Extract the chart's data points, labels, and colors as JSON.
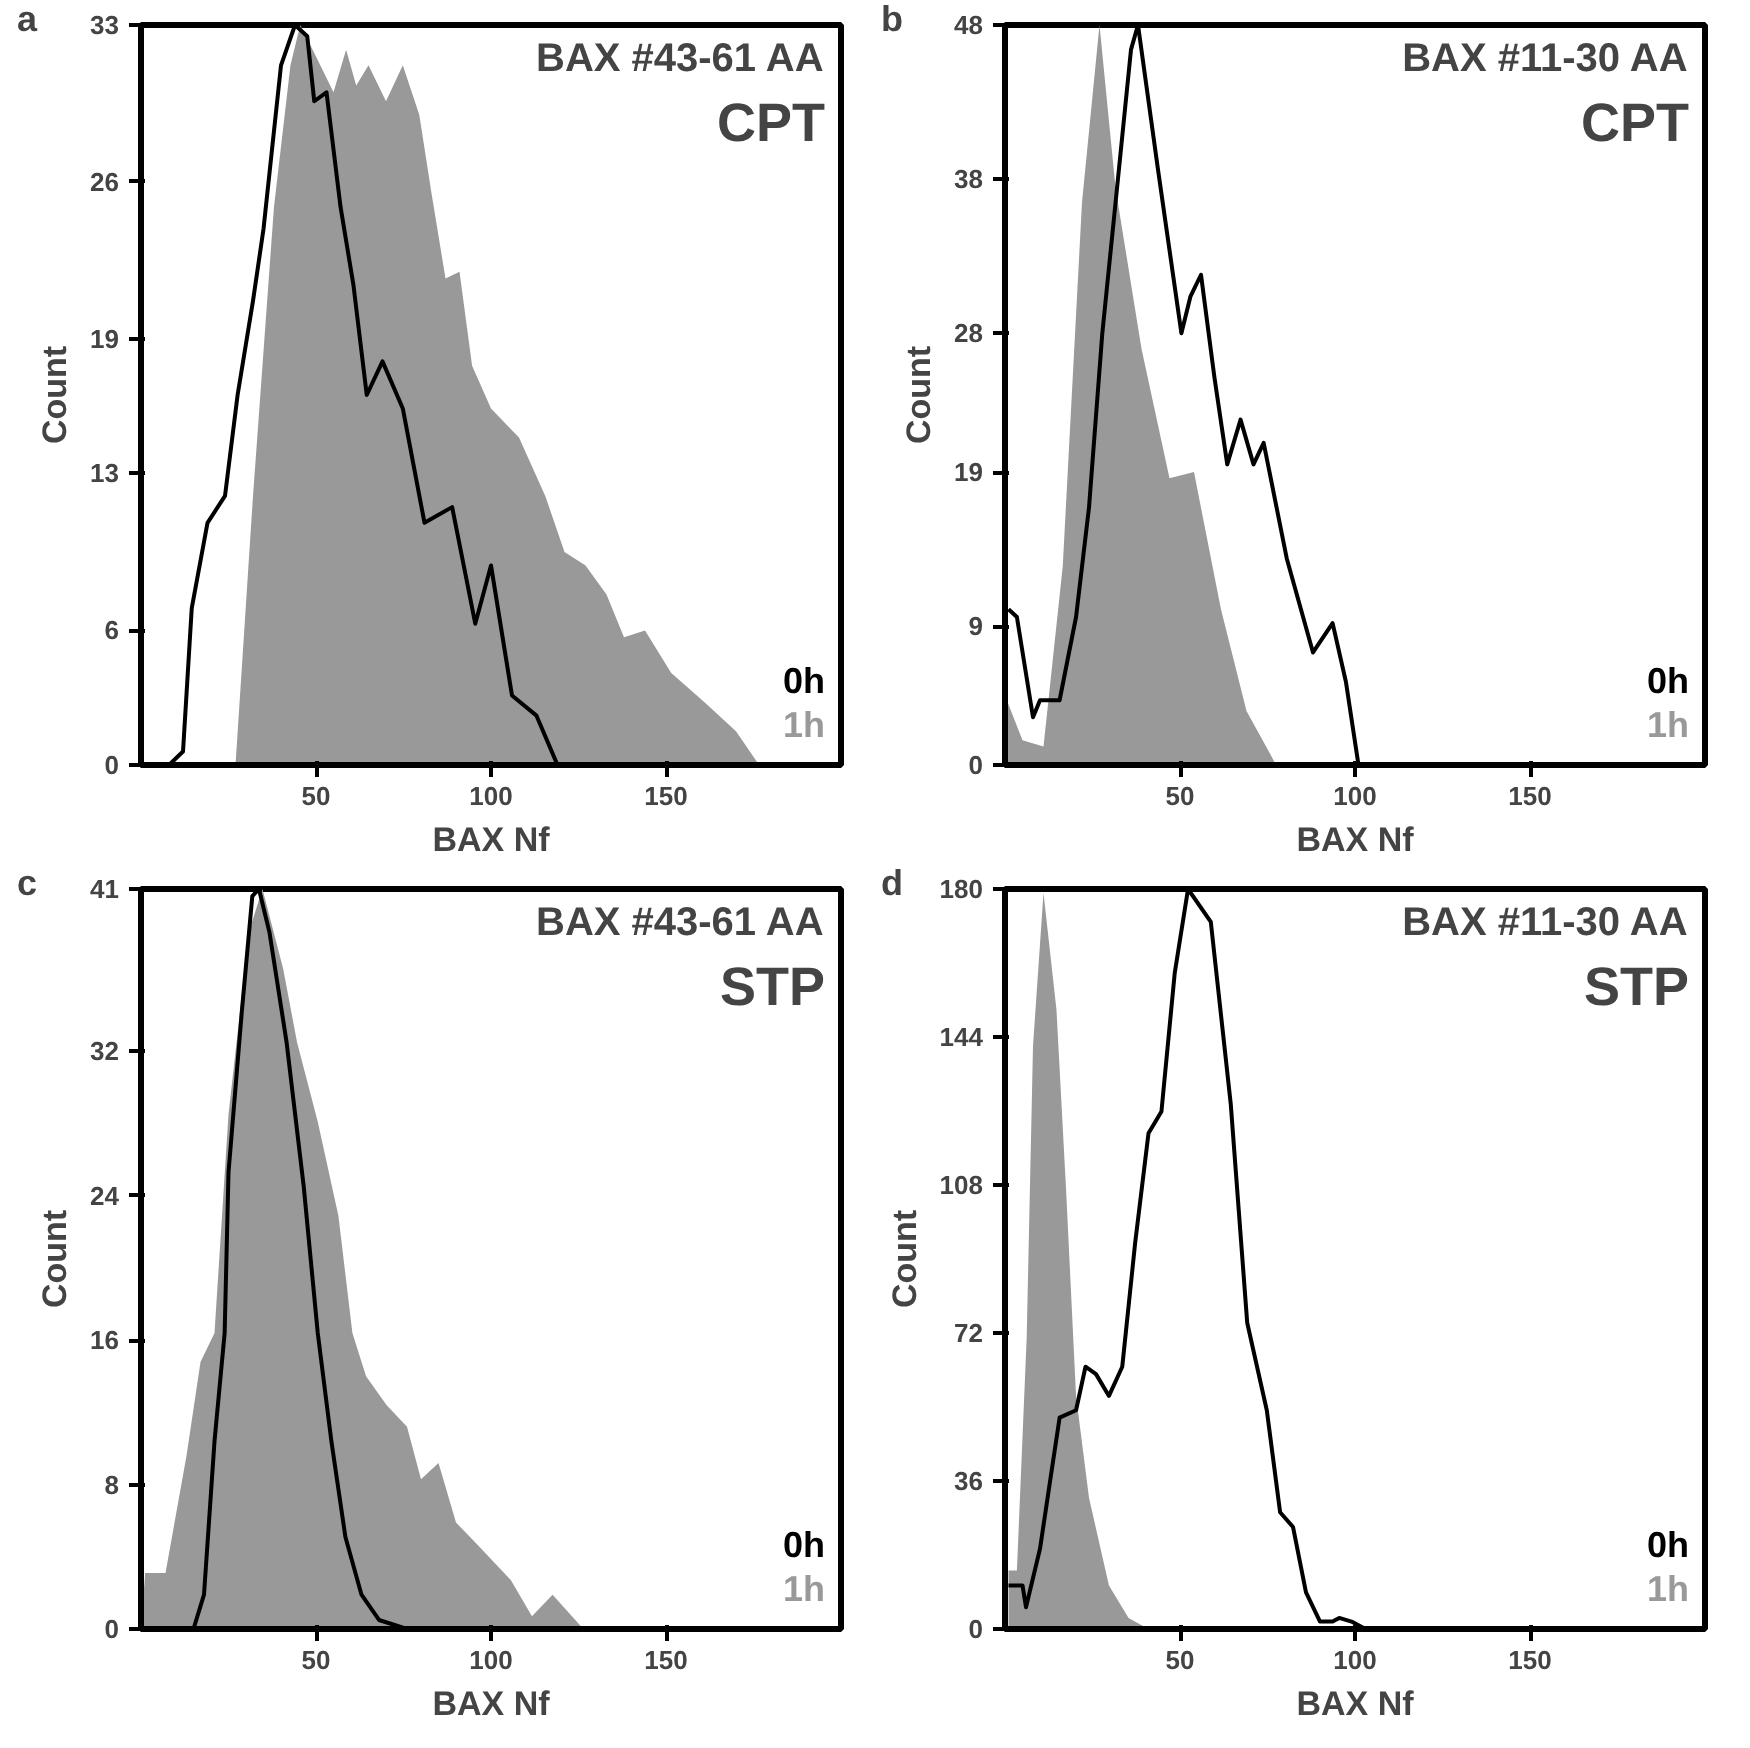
{
  "chart_data": [
    {
      "type": "line",
      "title": "BAX #43-61 AA",
      "subtitle": "CPT",
      "xlabel": "BAX Nf",
      "ylabel": "Count",
      "annotations": [
        "a"
      ],
      "xlim": [
        0,
        200
      ],
      "xticks": [
        50,
        100,
        150
      ],
      "ylim": [
        0,
        33
      ],
      "yticks": [
        0,
        6,
        13,
        19,
        26,
        33
      ],
      "legend": "bottom right",
      "grid": false,
      "series": [
        {
          "name": "0h",
          "color": "#000000",
          "x": [
            8,
            12,
            14.5,
            19,
            24,
            27.6,
            32,
            35,
            40,
            44,
            47.5,
            49.5,
            53,
            57,
            60.7,
            64.5,
            69,
            74.8,
            81,
            88.9,
            95.5,
            100,
            106,
            113,
            119
          ],
          "values": [
            0,
            0.6,
            7,
            10.8,
            12,
            16.5,
            20.7,
            23.9,
            31.2,
            33,
            32.5,
            29.6,
            30,
            24.9,
            21.4,
            16.5,
            18,
            15.9,
            10.8,
            11.5,
            6.3,
            8.9,
            3.1,
            2.2,
            0
          ]
        },
        {
          "name": "1h",
          "type": "area",
          "color": "#999999",
          "x": [
            27,
            32,
            38,
            42.7,
            45.5,
            50,
            55,
            58.6,
            61.5,
            65,
            70,
            74.8,
            79.5,
            83,
            87,
            91,
            94.6,
            100,
            108,
            115.5,
            121,
            127,
            133,
            138,
            144,
            151.5,
            161,
            170,
            176.6
          ],
          "values": [
            0,
            12,
            24.9,
            31.2,
            33,
            31.6,
            30,
            31.9,
            30.3,
            31.2,
            29.6,
            31.2,
            29,
            25.5,
            21.7,
            22,
            17.8,
            15.9,
            14.6,
            12,
            9.5,
            8.9,
            7.6,
            5.7,
            6,
            4.1,
            2.8,
            1.5,
            0
          ]
        }
      ]
    },
    {
      "type": "line",
      "title": "BAX #11-30 AA",
      "subtitle": "CPT",
      "xlabel": "BAX Nf",
      "ylabel": "Count",
      "annotations": [
        "b"
      ],
      "xlim": [
        0,
        200
      ],
      "xticks": [
        50,
        100,
        150
      ],
      "ylim": [
        0,
        48
      ],
      "yticks": [
        0,
        9,
        19,
        28,
        38,
        48
      ],
      "legend": "bottom right",
      "grid": false,
      "series": [
        {
          "name": "0h",
          "color": "#000000",
          "x": [
            1,
            3.4,
            8,
            10,
            15.6,
            20.3,
            24,
            27.8,
            31.6,
            36,
            38,
            43.6,
            50.4,
            53,
            56,
            59.8,
            63.5,
            67.3,
            71,
            73.9,
            80.5,
            88,
            93.6,
            97.4,
            101
          ],
          "values": [
            10.1,
            9.6,
            3.1,
            4.2,
            4.2,
            9.6,
            16.7,
            28,
            36.5,
            46.4,
            48,
            38.8,
            28,
            30.4,
            31.8,
            25.2,
            19.5,
            22.4,
            19.5,
            20.9,
            13.4,
            7.3,
            9.2,
            5.4,
            0
          ]
        },
        {
          "name": "1h",
          "type": "area",
          "color": "#999999",
          "x": [
            0,
            5,
            11,
            16.5,
            22,
            27,
            31.6,
            39,
            47,
            54,
            61.7,
            69,
            77,
            79.5
          ],
          "values": [
            4.5,
            1.6,
            1.2,
            12.9,
            36.5,
            48,
            37.4,
            27,
            18.6,
            19,
            10.1,
            3.5,
            0.2,
            0
          ]
        }
      ]
    },
    {
      "type": "line",
      "title": "BAX #43-61 AA",
      "subtitle": "STP",
      "xlabel": "BAX Nf",
      "ylabel": "Count",
      "annotations": [
        "c"
      ],
      "xlim": [
        0,
        200
      ],
      "xticks": [
        50,
        100,
        150
      ],
      "ylim": [
        0,
        41
      ],
      "yticks": [
        0,
        8,
        16,
        24,
        32,
        41
      ],
      "legend": "bottom right",
      "grid": false,
      "series": [
        {
          "name": "0h",
          "color": "#000000",
          "x": [
            15,
            18,
            21,
            23.9,
            25,
            28.8,
            31.8,
            33.7,
            36.7,
            41.6,
            46.5,
            50.5,
            54.4,
            58.4,
            63,
            68,
            76
          ],
          "values": [
            0,
            1.9,
            10.4,
            16.4,
            25.3,
            34.2,
            40.6,
            41,
            38.6,
            32.5,
            24.5,
            16.4,
            10.4,
            5.1,
            1.9,
            0.5,
            0
          ]
        },
        {
          "name": "1h",
          "type": "area",
          "color": "#999999",
          "x": [
            0,
            1.2,
            7,
            13,
            17,
            21,
            25,
            30.8,
            34.7,
            40.6,
            44.6,
            50.5,
            56.4,
            60.4,
            64.3,
            70.2,
            76,
            80,
            85,
            90,
            96,
            105.7,
            111.7,
            117.6,
            126.4
          ],
          "values": [
            0,
            3.1,
            3.1,
            9.6,
            14.8,
            16.4,
            28.5,
            38.6,
            41,
            36.6,
            32.5,
            28.1,
            22.9,
            16.4,
            14,
            12.4,
            11.2,
            8.3,
            9.2,
            5.9,
            4.7,
            2.7,
            0.7,
            1.9,
            0
          ]
        }
      ]
    },
    {
      "type": "line",
      "title": "BAX #11-30 AA",
      "subtitle": "STP",
      "xlabel": "BAX Nf",
      "ylabel": "Count",
      "annotations": [
        "d"
      ],
      "xlim": [
        0,
        200
      ],
      "xticks": [
        50,
        100,
        150
      ],
      "ylim": [
        0,
        180
      ],
      "yticks": [
        0,
        36,
        72,
        108,
        144,
        180
      ],
      "legend": "bottom right",
      "grid": false,
      "series": [
        {
          "name": "0h",
          "color": "#000000",
          "x": [
            1,
            5,
            6,
            10,
            12.8,
            15.6,
            20.3,
            23,
            26,
            29.7,
            33.5,
            37.2,
            41,
            44.7,
            48.5,
            52.3,
            58.8,
            64.5,
            69.2,
            74.8,
            78.6,
            82.3,
            86,
            90,
            93.6,
            95.5,
            99,
            103
          ],
          "values": [
            10.6,
            10.6,
            5.3,
            19.5,
            35.5,
            51.4,
            53.2,
            63.8,
            62,
            56.7,
            63.8,
            94,
            120.6,
            125.9,
            159.6,
            180,
            172,
            127.7,
            74.5,
            53.2,
            28.4,
            24.8,
            8.9,
            1.8,
            1.8,
            2.7,
            1.8,
            0
          ]
        },
        {
          "name": "1h",
          "type": "area",
          "color": "#999999",
          "x": [
            1,
            3.4,
            6.2,
            8,
            11,
            14.7,
            17.5,
            20.3,
            24,
            29.7,
            35.3,
            41
          ],
          "values": [
            14.2,
            14.2,
            70.9,
            141.8,
            179,
            150.7,
            106,
            56.7,
            31.9,
            10.6,
            2.7,
            0
          ]
        }
      ]
    }
  ]
}
